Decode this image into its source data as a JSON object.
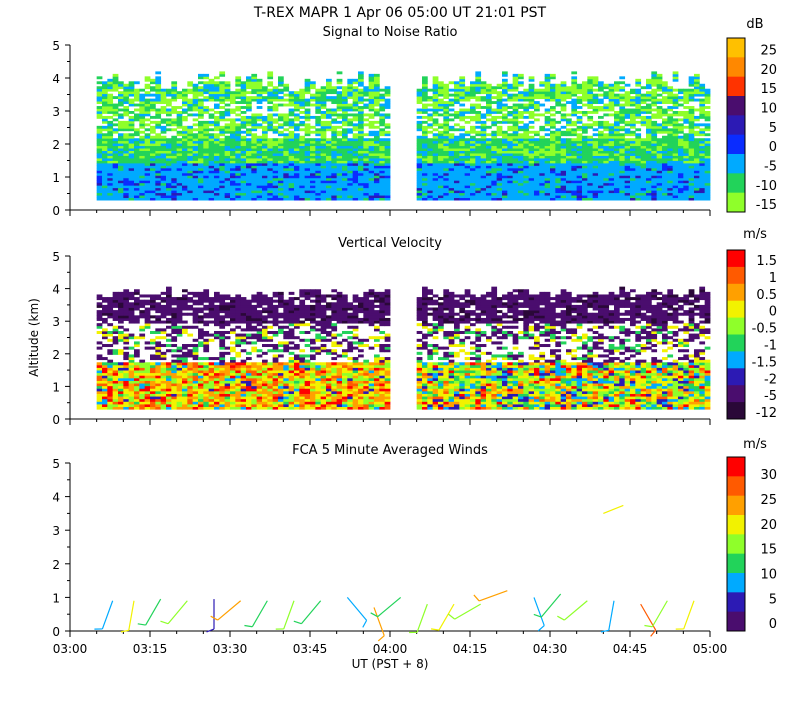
{
  "header": {
    "line1": "T-REX   MAPR   1 Apr 06   05:00 UT   21:01   PST"
  },
  "chart_data": [
    {
      "type": "heatmap",
      "title": "Signal to Noise Ratio",
      "unit": "dB",
      "ylabel": "",
      "ylim": [
        0,
        5
      ],
      "yticks": [
        "0",
        "1",
        "2",
        "3",
        "4",
        "5"
      ],
      "xlim": [
        "03:00",
        "05:00"
      ],
      "data_gaps": [
        [
          "04:00",
          "04:05"
        ]
      ],
      "colorbar": {
        "labels": [
          "25",
          "20",
          "15",
          "10",
          "5",
          "0",
          "-5",
          "-10",
          "-15"
        ],
        "colors": [
          "#ffc000",
          "#ff8800",
          "#ff3300",
          "#4a0d6e",
          "#2c1ab4",
          "#0a2cff",
          "#00aaff",
          "#22d35a",
          "#8fff2a"
        ]
      },
      "description_values": {
        "low_altitude_dB": -5,
        "mid_altitude_dB": -10,
        "upper_altitude_dB": -15
      }
    },
    {
      "type": "heatmap",
      "title": "Vertical Velocity",
      "unit": "m/s",
      "ylabel": "Altitude (km)",
      "ylim": [
        0,
        5
      ],
      "yticks": [
        "0",
        "1",
        "2",
        "3",
        "4",
        "5"
      ],
      "xlim": [
        "03:00",
        "05:00"
      ],
      "data_gaps": [
        [
          "04:00",
          "04:05"
        ]
      ],
      "colorbar": {
        "labels": [
          "1.5",
          "1",
          "0.5",
          "0",
          "-0.5",
          "-1",
          "-1.5",
          "-2",
          "-5",
          "-12"
        ],
        "colors": [
          "#ff0000",
          "#ff5a00",
          "#ffa000",
          "#f2f200",
          "#8fff2a",
          "#22d35a",
          "#00aaff",
          "#2c1ab4",
          "#4a0d6e",
          "#2a0838"
        ]
      }
    },
    {
      "type": "scatter",
      "title": "FCA 5 Minute Averaged Winds",
      "unit": "m/s",
      "xlabel": "UT  (PST + 8)",
      "ylabel": "",
      "ylim": [
        0,
        5
      ],
      "yticks": [
        "0",
        "1",
        "2",
        "3",
        "4",
        "5"
      ],
      "xlim": [
        "03:00",
        "05:00"
      ],
      "xticks": [
        "03:00",
        "03:15",
        "03:30",
        "03:45",
        "04:00",
        "04:15",
        "04:30",
        "04:45",
        "05:00"
      ],
      "colorbar": {
        "labels": [
          "30",
          "25",
          "20",
          "15",
          "10",
          "5",
          "0"
        ],
        "colors": [
          "#ff0000",
          "#ff5a00",
          "#ffa000",
          "#f2f200",
          "#8fff2a",
          "#22d35a",
          "#00aaff",
          "#2c1ab4",
          "#4a0d6e"
        ]
      },
      "barbs_t_min": [
        8,
        12,
        17,
        22,
        27,
        32,
        37,
        42,
        47,
        52,
        57,
        62,
        67,
        72,
        77,
        82,
        87,
        92,
        97,
        102,
        107,
        112,
        117
      ],
      "barbs_alt_km": [
        0.9,
        0.9,
        0.95,
        0.9,
        0.95,
        0.9,
        0.9,
        0.9,
        0.9,
        1.0,
        0.7,
        1.0,
        0.8,
        0.8,
        0.8,
        1.2,
        1.0,
        1.1,
        0.9,
        0.9,
        0.8,
        0.9,
        0.9
      ],
      "barbs_speed_ms": [
        8,
        18,
        12,
        14,
        3,
        22,
        10,
        14,
        12,
        8,
        24,
        12,
        14,
        20,
        16,
        22,
        8,
        12,
        16,
        8,
        26,
        16,
        20
      ],
      "barbs_dir_deg": [
        200,
        190,
        210,
        220,
        180,
        230,
        210,
        200,
        220,
        140,
        160,
        230,
        200,
        210,
        240,
        250,
        160,
        220,
        230,
        190,
        150,
        210,
        200
      ]
    }
  ]
}
